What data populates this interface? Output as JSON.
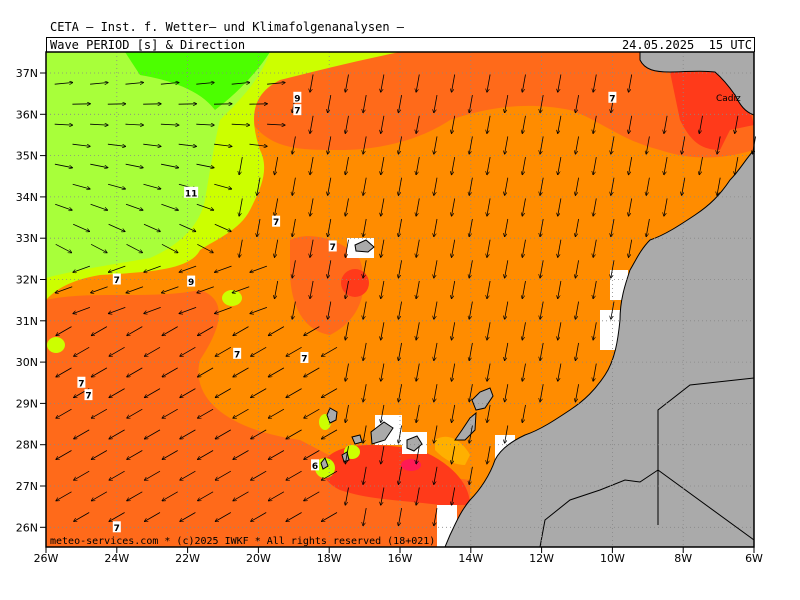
{
  "header": {
    "title": "CETA – Inst. f. Wetter– und Klimafolgenanalysen –",
    "parameter": "Wave_PERIOD_[s]_&_Direction",
    "timestamp": "24.05.2025  15 UTC"
  },
  "footer": "meteo-services.com * (c)2025 IWKF * All rights reserved (18+021)",
  "map": {
    "lon_ticks": [
      "26W",
      "24W",
      "22W",
      "20W",
      "18W",
      "16W",
      "14W",
      "12W",
      "10W",
      "8W",
      "6W"
    ],
    "lat_ticks": [
      "37N",
      "36N",
      "35N",
      "34N",
      "33N",
      "32N",
      "31N",
      "30N",
      "29N",
      "28N",
      "27N",
      "26N"
    ],
    "place_label": "Cadiz",
    "period_labels": [
      {
        "text": "7",
        "lon": -24.0,
        "lat": 32.0
      },
      {
        "text": "7",
        "lon": -25.0,
        "lat": 29.5
      },
      {
        "text": "7",
        "lon": -24.8,
        "lat": 29.2
      },
      {
        "text": "7",
        "lon": -24.0,
        "lat": 26.0
      },
      {
        "text": "11",
        "lon": -21.9,
        "lat": 34.1
      },
      {
        "text": "9",
        "lon": -21.9,
        "lat": 31.95
      },
      {
        "text": "9",
        "lon": -18.9,
        "lat": 36.4
      },
      {
        "text": "7",
        "lon": -18.9,
        "lat": 36.1
      },
      {
        "text": "7",
        "lon": -19.5,
        "lat": 33.4
      },
      {
        "text": "7",
        "lon": -17.9,
        "lat": 32.8
      },
      {
        "text": "7",
        "lon": -20.6,
        "lat": 30.2
      },
      {
        "text": "7",
        "lon": -18.7,
        "lat": 30.1
      },
      {
        "text": "6",
        "lon": -18.4,
        "lat": 27.5
      },
      {
        "text": "7",
        "lon": -10.0,
        "lat": 36.4
      }
    ]
  },
  "colors": {
    "land": "#aaaaaa",
    "p_green": "#4cff00",
    "p_lime": "#a8ff3a",
    "p_yellowgreen": "#ccff00",
    "p_orange": "#ff8c00",
    "p_darkorange": "#ff6a1a",
    "p_red": "#ff3a1a",
    "p_magenta": "#ff1a55",
    "p_gold": "#ffb000"
  }
}
